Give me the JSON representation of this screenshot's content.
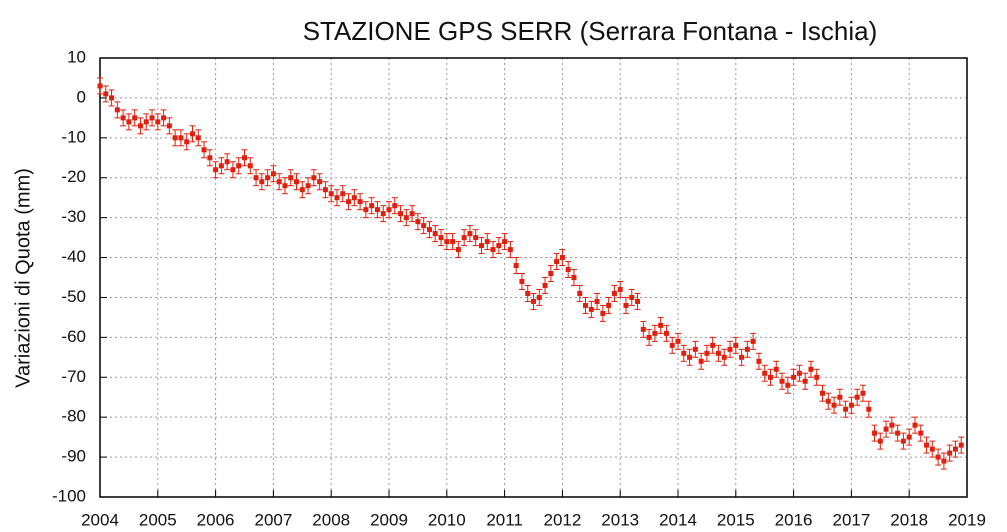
{
  "chart_data": {
    "type": "scatter",
    "title": "STAZIONE GPS SERR (Serrara Fontana - Ischia)",
    "ylabel": "Variazioni di Quota (mm)",
    "color": "#e0200f",
    "grid": true,
    "xlim": [
      2004,
      2019
    ],
    "xticks": [
      2004,
      2005,
      2006,
      2007,
      2008,
      2009,
      2010,
      2011,
      2012,
      2013,
      2014,
      2015,
      2016,
      2017,
      2018,
      2019
    ],
    "ylim": [
      -100,
      10
    ],
    "yticks": [
      -100,
      -90,
      -80,
      -70,
      -60,
      -50,
      -40,
      -30,
      -20,
      -10,
      0,
      10
    ],
    "x": [
      2004.0,
      2004.1,
      2004.2,
      2004.3,
      2004.4,
      2004.5,
      2004.6,
      2004.7,
      2004.8,
      2004.9,
      2005.0,
      2005.1,
      2005.2,
      2005.3,
      2005.4,
      2005.5,
      2005.6,
      2005.7,
      2005.8,
      2005.9,
      2006.0,
      2006.1,
      2006.2,
      2006.3,
      2006.4,
      2006.5,
      2006.6,
      2006.7,
      2006.8,
      2006.9,
      2007.0,
      2007.1,
      2007.2,
      2007.3,
      2007.4,
      2007.5,
      2007.6,
      2007.7,
      2007.8,
      2007.9,
      2008.0,
      2008.1,
      2008.2,
      2008.3,
      2008.4,
      2008.5,
      2008.6,
      2008.7,
      2008.8,
      2008.9,
      2009.0,
      2009.1,
      2009.2,
      2009.3,
      2009.4,
      2009.5,
      2009.6,
      2009.7,
      2009.8,
      2009.9,
      2010.0,
      2010.1,
      2010.2,
      2010.3,
      2010.4,
      2010.5,
      2010.6,
      2010.7,
      2010.8,
      2010.9,
      2011.0,
      2011.1,
      2011.2,
      2011.3,
      2011.4,
      2011.5,
      2011.6,
      2011.7,
      2011.8,
      2011.9,
      2012.0,
      2012.1,
      2012.2,
      2012.3,
      2012.4,
      2012.5,
      2012.6,
      2012.7,
      2012.8,
      2012.9,
      2013.0,
      2013.1,
      2013.2,
      2013.3,
      2013.4,
      2013.5,
      2013.6,
      2013.7,
      2013.8,
      2013.9,
      2014.0,
      2014.1,
      2014.2,
      2014.3,
      2014.4,
      2014.5,
      2014.6,
      2014.7,
      2014.8,
      2014.9,
      2015.0,
      2015.1,
      2015.2,
      2015.3,
      2015.4,
      2015.5,
      2015.6,
      2015.7,
      2015.8,
      2015.9,
      2016.0,
      2016.1,
      2016.2,
      2016.3,
      2016.4,
      2016.5,
      2016.6,
      2016.7,
      2016.8,
      2016.9,
      2017.0,
      2017.1,
      2017.2,
      2017.3,
      2017.4,
      2017.5,
      2017.6,
      2017.7,
      2017.8,
      2017.9,
      2018.0,
      2018.1,
      2018.2,
      2018.3,
      2018.4,
      2018.5,
      2018.6,
      2018.7,
      2018.8,
      2018.9
    ],
    "values": [
      3,
      1,
      0,
      -3,
      -5,
      -6,
      -5,
      -7,
      -6,
      -5,
      -6,
      -5,
      -7,
      -10,
      -10,
      -11,
      -9,
      -10,
      -13,
      -15,
      -18,
      -17,
      -16,
      -18,
      -17,
      -15,
      -17,
      -20,
      -21,
      -20,
      -19,
      -21,
      -22,
      -20,
      -21,
      -23,
      -22,
      -20,
      -21,
      -23,
      -24,
      -25,
      -24,
      -26,
      -25,
      -26,
      -28,
      -27,
      -28,
      -29,
      -28,
      -27,
      -29,
      -30,
      -29,
      -31,
      -32,
      -33,
      -34,
      -35,
      -36,
      -36,
      -38,
      -35,
      -34,
      -35,
      -37,
      -36,
      -38,
      -37,
      -36,
      -38,
      -42,
      -46,
      -49,
      -51,
      -50,
      -47,
      -44,
      -41,
      -40,
      -43,
      -45,
      -49,
      -52,
      -53,
      -51,
      -54,
      -52,
      -49,
      -48,
      -52,
      -50,
      -51,
      -58,
      -60,
      -59,
      -57,
      -59,
      -62,
      -61,
      -64,
      -65,
      -63,
      -66,
      -64,
      -62,
      -64,
      -65,
      -63,
      -62,
      -65,
      -63,
      -61,
      -66,
      -69,
      -70,
      -68,
      -71,
      -72,
      -70,
      -69,
      -71,
      -68,
      -70,
      -74,
      -76,
      -77,
      -75,
      -78,
      -77,
      -75,
      -74,
      -78,
      -84,
      -86,
      -83,
      -82,
      -84,
      -86,
      -85,
      -82,
      -84,
      -87,
      -88,
      -90,
      -91,
      -89,
      -88,
      -87
    ],
    "errors": [
      2,
      2,
      2,
      2,
      2,
      2,
      2,
      2,
      2,
      2,
      2,
      2,
      2,
      2,
      2,
      2,
      2,
      2,
      2,
      2,
      2,
      2,
      2,
      2,
      2,
      2,
      2,
      2,
      2,
      2,
      2,
      2,
      2,
      2,
      2,
      2,
      2,
      2,
      2,
      2,
      2,
      2,
      2,
      2,
      2,
      2,
      2,
      2,
      2,
      2,
      2,
      2,
      2,
      2,
      2,
      2,
      2,
      2,
      2,
      2,
      2,
      2,
      2,
      2,
      2,
      2,
      2,
      2,
      2,
      2,
      2,
      2,
      2,
      2,
      2,
      2,
      2,
      2,
      2,
      2,
      2,
      2,
      2,
      2,
      2,
      2,
      2,
      2,
      2,
      2,
      2,
      2,
      2,
      2,
      2,
      2,
      2,
      2,
      2,
      2,
      2,
      2,
      2,
      2,
      2,
      2,
      2,
      2,
      2,
      2,
      2,
      2,
      2,
      2,
      2,
      2,
      2,
      2,
      2,
      2,
      2,
      2,
      2,
      2,
      2,
      2,
      2,
      2,
      2,
      2,
      2,
      2,
      2,
      2,
      2,
      2,
      2,
      2,
      2,
      2,
      2,
      2,
      2,
      2,
      2,
      2,
      2,
      2,
      2,
      2
    ]
  }
}
